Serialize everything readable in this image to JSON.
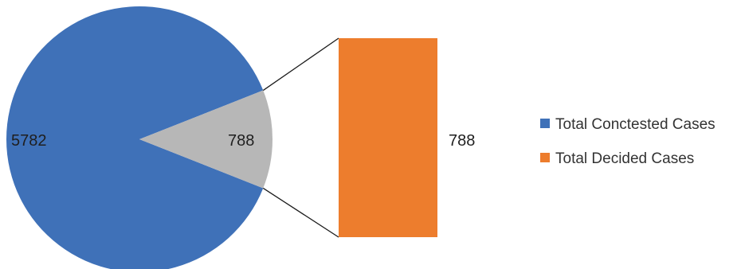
{
  "chart_data": {
    "type": "pie-of-bar",
    "title": "",
    "pie": {
      "slices": [
        {
          "name": "Total Conctested Cases",
          "value": 5782,
          "label": "5782",
          "color": "#3f71b8"
        },
        {
          "name": "Total Decided Cases",
          "value": 788,
          "label": "788",
          "color": "#b7b7b7"
        }
      ]
    },
    "bar": {
      "name": "Total Decided Cases",
      "value": 788,
      "label": "788",
      "color": "#ed7d2d"
    },
    "legend": {
      "placement": "right",
      "entries": [
        {
          "name": "Total Conctested Cases",
          "color": "#3f71b8"
        },
        {
          "name": "Total Decided Cases",
          "color": "#ed7d2d"
        }
      ]
    }
  }
}
